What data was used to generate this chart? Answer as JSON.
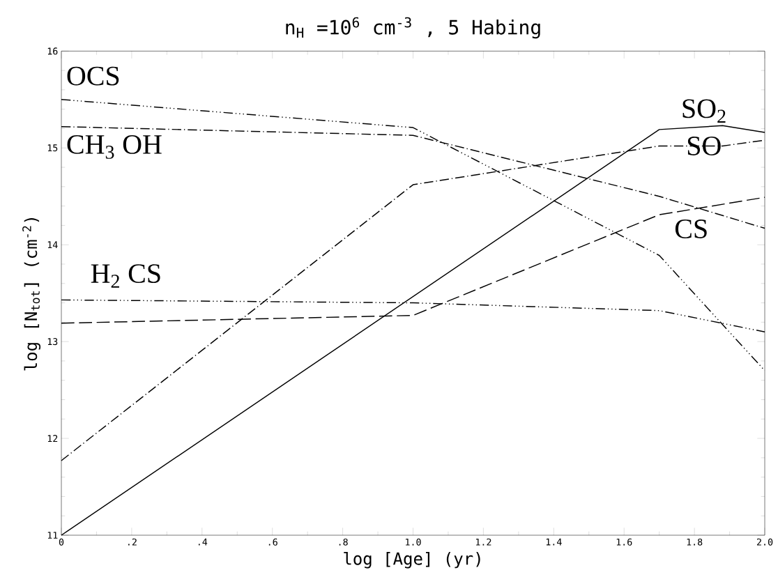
{
  "chart_data": {
    "type": "line",
    "title": "n$_{H}$ =10$^{6}$  cm$^{-3}$ , 5 Habing",
    "xlabel": "log [Age] (yr)",
    "ylabel": "log [N$_{tot}$] (cm$^{-2}$)",
    "xlim": [
      0,
      2.0
    ],
    "ylim": [
      11,
      16
    ],
    "xticks": [
      0,
      {
        "value": 0.2,
        "label": ".2"
      },
      {
        "value": 0.4,
        "label": ".4"
      },
      {
        "value": 0.6,
        "label": ".6"
      },
      {
        "value": 0.8,
        "label": ".8"
      },
      {
        "value": 1.0,
        "label": "1.0"
      },
      {
        "value": 1.2,
        "label": "1.2"
      },
      {
        "value": 1.4,
        "label": "1.4"
      },
      {
        "value": 1.6,
        "label": "1.6"
      },
      {
        "value": 1.8,
        "label": "1.8"
      },
      {
        "value": 2.0,
        "label": "2.0"
      }
    ],
    "yticks": [
      11,
      12,
      13,
      14,
      15,
      16
    ],
    "grid": false,
    "marker": "none",
    "series": [
      {
        "name": "OCS",
        "color": "#000000",
        "line_style": "dashdotdot",
        "x": [
          0,
          1.0,
          1.7,
          2.0
        ],
        "values": [
          15.5,
          15.21,
          13.89,
          12.7
        ]
      },
      {
        "name": "CH$_{3}$ OH",
        "color": "#000000",
        "line_style": "dashdot",
        "x": [
          0,
          1.0,
          1.7,
          2.0
        ],
        "values": [
          15.22,
          15.13,
          14.5,
          14.17
        ]
      },
      {
        "name": "H$_{2}$ CS",
        "color": "#000000",
        "line_style": "dashdotdot",
        "x": [
          0,
          1.0,
          1.7,
          2.0
        ],
        "values": [
          13.43,
          13.4,
          13.32,
          13.1
        ]
      },
      {
        "name": "SO$_{2}$",
        "color": "#000000",
        "line_style": "solid",
        "x": [
          0,
          1.7,
          1.88,
          2.0
        ],
        "values": [
          11.0,
          15.19,
          15.23,
          15.16
        ]
      },
      {
        "name": "SO",
        "color": "#000000",
        "line_style": "dashdot",
        "x": [
          0,
          1.0,
          1.7,
          1.88,
          2.0
        ],
        "values": [
          11.77,
          14.62,
          15.02,
          15.02,
          15.08
        ]
      },
      {
        "name": "CS",
        "color": "#000000",
        "line_style": "dashed",
        "x": [
          0,
          1.0,
          1.7,
          2.0
        ],
        "values": [
          13.19,
          13.27,
          14.31,
          14.49
        ]
      }
    ]
  }
}
